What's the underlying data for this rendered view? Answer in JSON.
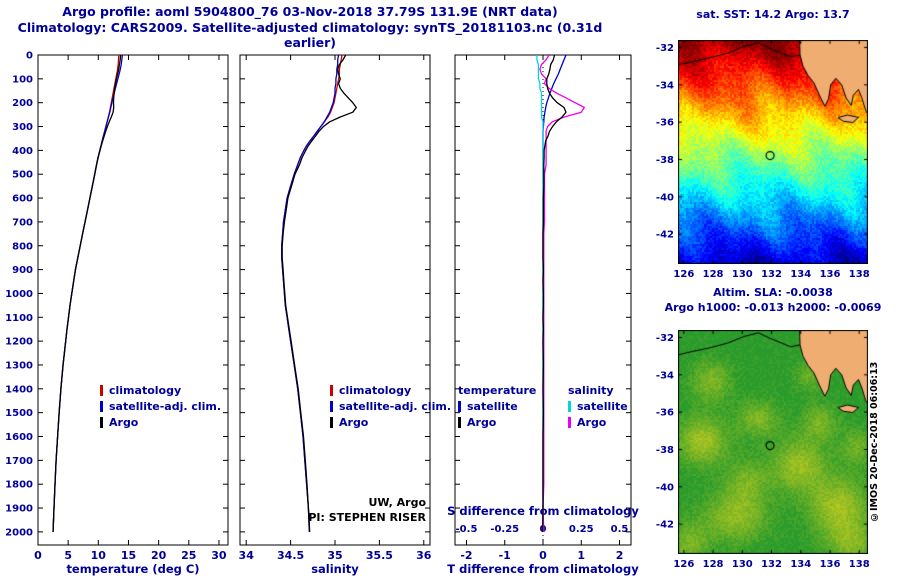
{
  "title": {
    "line1": "Argo profile: aoml 5904800_76 03-Nov-2018 37.79S 131.9E (NRT data)",
    "line2": "Climatology: CARS2009. Satellite-adjusted climatology: synTS_20181103.nc (0.31d earlier)"
  },
  "colors": {
    "text": "#000099",
    "frame": "#000000",
    "climatology": "#cc0000",
    "satellite": "#0000cc",
    "argo": "#000000",
    "sal_satellite": "#00d5e0",
    "sal_argo": "#ee00ee",
    "land": "#efad72",
    "background": "#ffffff"
  },
  "legend_profile": {
    "items": [
      {
        "label": "climatology",
        "color": "#cc0000"
      },
      {
        "label": "satellite-adj. clim.",
        "color": "#0000cc"
      },
      {
        "label": "Argo",
        "color": "#000000"
      }
    ]
  },
  "legend_diff": {
    "t_header": "temperature",
    "s_header": "salinity",
    "t_items": [
      {
        "label": "satellite",
        "color": "#0000cc"
      },
      {
        "label": "Argo",
        "color": "#000000"
      }
    ],
    "s_items": [
      {
        "label": "satellite",
        "color": "#00d5e0"
      },
      {
        "label": "Argo",
        "color": "#ee00ee"
      }
    ]
  },
  "annotations": {
    "uw": "UW, Argo",
    "pi": "PI: STEPHEN RISER",
    "copyright": "©IMOS 20-Dec-2018 06:06:13"
  },
  "chart_data": [
    {
      "id": "temperature-profile",
      "type": "line",
      "xlabel": "temperature (deg C)",
      "xlim": [
        0,
        31.5
      ],
      "xticks": [
        0,
        5,
        10,
        15,
        20,
        25,
        30
      ],
      "ylim": [
        0,
        2055
      ],
      "yticks": [
        0,
        100,
        200,
        300,
        400,
        500,
        600,
        700,
        800,
        900,
        1000,
        1100,
        1200,
        1300,
        1400,
        1500,
        1600,
        1700,
        1800,
        1900,
        2000
      ],
      "show_yticklabels": true,
      "depths": [
        0,
        20,
        40,
        60,
        80,
        100,
        120,
        140,
        160,
        180,
        200,
        220,
        240,
        260,
        280,
        300,
        320,
        340,
        360,
        380,
        400,
        430,
        460,
        500,
        550,
        600,
        650,
        700,
        750,
        800,
        850,
        900,
        950,
        1000,
        1050,
        1100,
        1150,
        1200,
        1300,
        1400,
        1500,
        1600,
        1700,
        1800,
        1900,
        2000
      ],
      "series": [
        {
          "name": "climatology",
          "color": "#cc0000",
          "values": [
            13.4,
            13.35,
            13.3,
            13.2,
            13.05,
            12.9,
            12.75,
            12.6,
            12.45,
            12.3,
            12.15,
            12.0,
            11.85,
            11.65,
            11.45,
            11.25,
            11.05,
            10.85,
            10.65,
            10.45,
            10.25,
            9.95,
            9.7,
            9.4,
            9.0,
            8.6,
            8.2,
            7.8,
            7.4,
            7.0,
            6.6,
            6.2,
            5.9,
            5.6,
            5.3,
            5.05,
            4.8,
            4.6,
            4.15,
            3.8,
            3.5,
            3.25,
            3.0,
            2.82,
            2.65,
            2.5
          ]
        },
        {
          "name": "satellite-adj. clim.",
          "color": "#0000cc",
          "values": [
            14.0,
            13.9,
            13.8,
            13.65,
            13.45,
            13.24,
            13.03,
            12.83,
            12.63,
            12.44,
            12.25,
            12.07,
            11.9,
            11.68,
            11.47,
            11.26,
            11.05,
            10.85,
            10.65,
            10.45,
            10.25,
            9.95,
            9.7,
            9.4,
            9.0,
            8.6,
            8.2,
            7.8,
            7.4,
            7.0,
            6.6,
            6.2,
            5.9,
            5.6,
            5.3,
            5.05,
            4.8,
            4.6,
            4.15,
            3.8,
            3.5,
            3.25,
            3.0,
            2.82,
            2.65,
            2.5
          ]
        },
        {
          "name": "Argo",
          "color": "#000000",
          "values": [
            13.7,
            13.62,
            13.5,
            13.38,
            13.2,
            13.0,
            12.85,
            12.72,
            12.62,
            12.55,
            12.52,
            12.55,
            12.45,
            12.15,
            11.8,
            11.5,
            11.22,
            10.98,
            10.72,
            10.5,
            10.28,
            9.98,
            9.72,
            9.42,
            9.02,
            8.61,
            8.21,
            7.81,
            7.4,
            7.0,
            6.6,
            6.21,
            5.9,
            5.61,
            5.31,
            5.05,
            4.81,
            4.6,
            4.16,
            3.8,
            3.51,
            3.25,
            3.0,
            2.82,
            2.65,
            2.49
          ]
        }
      ]
    },
    {
      "id": "salinity-profile",
      "type": "line",
      "xlabel": "salinity",
      "xlim": [
        33.93,
        36.07
      ],
      "xticks": [
        34,
        34.5,
        35,
        35.5,
        36
      ],
      "xtick_labels": [
        "34",
        "34.5",
        "35",
        "35.5",
        "36"
      ],
      "ylim": [
        0,
        2055
      ],
      "yticks": [
        0,
        100,
        200,
        300,
        400,
        500,
        600,
        700,
        800,
        900,
        1000,
        1100,
        1200,
        1300,
        1400,
        1500,
        1600,
        1700,
        1800,
        1900,
        2000
      ],
      "show_yticklabels": false,
      "depths": [
        0,
        20,
        40,
        60,
        80,
        100,
        120,
        140,
        160,
        180,
        200,
        220,
        240,
        260,
        280,
        300,
        320,
        340,
        360,
        380,
        400,
        430,
        460,
        500,
        550,
        600,
        650,
        700,
        750,
        800,
        850,
        900,
        950,
        1000,
        1050,
        1100,
        1150,
        1200,
        1300,
        1400,
        1500,
        1600,
        1700,
        1800,
        1900,
        2000
      ],
      "series": [
        {
          "name": "climatology",
          "color": "#cc0000",
          "values": [
            35.08,
            35.07,
            35.06,
            35.05,
            35.05,
            35.04,
            35.03,
            35.02,
            35.01,
            35.0,
            34.99,
            34.97,
            34.95,
            34.92,
            34.88,
            34.84,
            34.8,
            34.76,
            34.72,
            34.68,
            34.65,
            34.61,
            34.58,
            34.54,
            34.5,
            34.46,
            34.44,
            34.42,
            34.41,
            34.4,
            34.4,
            34.41,
            34.42,
            34.43,
            34.44,
            34.46,
            34.48,
            34.5,
            34.54,
            34.58,
            34.61,
            34.64,
            34.66,
            34.68,
            34.7,
            34.71
          ]
        },
        {
          "name": "satellite-adj. clim.",
          "color": "#0000cc",
          "values": [
            35.04,
            35.03,
            35.03,
            35.02,
            35.02,
            35.01,
            35.01,
            35.0,
            35.0,
            34.99,
            34.98,
            34.96,
            34.94,
            34.91,
            34.88,
            34.84,
            34.8,
            34.76,
            34.72,
            34.68,
            34.65,
            34.61,
            34.58,
            34.54,
            34.5,
            34.46,
            34.44,
            34.42,
            34.41,
            34.4,
            34.4,
            34.41,
            34.42,
            34.43,
            34.44,
            34.46,
            34.48,
            34.5,
            34.54,
            34.58,
            34.61,
            34.64,
            34.66,
            34.68,
            34.7,
            34.71
          ]
        },
        {
          "name": "Argo",
          "color": "#000000",
          "values": [
            35.12,
            35.09,
            35.05,
            35.03,
            35.04,
            35.06,
            35.04,
            35.06,
            35.1,
            35.15,
            35.2,
            35.24,
            35.2,
            35.06,
            34.94,
            34.87,
            34.82,
            34.78,
            34.74,
            34.7,
            34.67,
            34.63,
            34.6,
            34.55,
            34.51,
            34.47,
            34.45,
            34.43,
            34.415,
            34.405,
            34.405,
            34.415,
            34.425,
            34.435,
            34.445,
            34.465,
            34.485,
            34.505,
            34.545,
            34.585,
            34.615,
            34.645,
            34.665,
            34.685,
            34.7,
            34.715
          ]
        }
      ]
    },
    {
      "id": "difference-profile",
      "type": "line",
      "xlabel_bottom": "T difference from climatology",
      "xlabel_inner": "S difference from climatology",
      "xlim": [
        -2.3,
        2.3
      ],
      "xticks": [
        -2,
        -1,
        0,
        1,
        2
      ],
      "xtick_labels": [
        "-2",
        "-1",
        "0",
        "1",
        "2"
      ],
      "s_ticks": [
        -0.5,
        -0.25,
        0,
        0.25,
        0.5
      ],
      "s_tick_labels": [
        "-0.5",
        "-0.25",
        "0",
        "0.25",
        "0.5"
      ],
      "s_scale_factor": 4,
      "ylim": [
        0,
        2055
      ],
      "yticks": [
        0,
        100,
        200,
        300,
        400,
        500,
        600,
        700,
        800,
        900,
        1000,
        1100,
        1200,
        1300,
        1400,
        1500,
        1600,
        1700,
        1800,
        1900,
        2000
      ],
      "series_source": "computed: satellite and Argo minus climatology, from charts 0 and 1"
    },
    {
      "id": "sst-map",
      "type": "heatmap",
      "title": "sat. SST: 14.2 Argo: 13.7",
      "colormap": "jet",
      "xlim": [
        125.6,
        138.6
      ],
      "ylim": [
        -43.6,
        -31.6
      ],
      "xticks": [
        126,
        128,
        130,
        132,
        134,
        136,
        138
      ],
      "yticks": [
        -32,
        -34,
        -36,
        -38,
        -40,
        -42
      ],
      "marker": {
        "lon": 131.9,
        "lat": -37.79
      }
    },
    {
      "id": "sla-map",
      "type": "heatmap",
      "title_line1": "Altim. SLA: -0.0038",
      "title_line2": "Argo h1000: -0.013 h2000: -0.0069",
      "colormap": "green-yellow",
      "xlim": [
        125.6,
        138.6
      ],
      "ylim": [
        -43.6,
        -31.6
      ],
      "xticks": [
        126,
        128,
        130,
        132,
        134,
        136,
        138
      ],
      "yticks": [
        -32,
        -34,
        -36,
        -38,
        -40,
        -42
      ],
      "marker": {
        "lon": 131.9,
        "lat": -37.79
      }
    }
  ],
  "map_geo": {
    "coast": [
      [
        125.5,
        -32.95
      ],
      [
        126.6,
        -32.75
      ],
      [
        127.8,
        -32.55
      ],
      [
        129.0,
        -32.3
      ],
      [
        130.1,
        -31.95
      ],
      [
        131.1,
        -31.75
      ],
      [
        131.9,
        -32.05
      ],
      [
        132.7,
        -32.3
      ],
      [
        133.3,
        -32.5
      ],
      [
        133.95,
        -32.4
      ]
    ],
    "land": [
      [
        133.9,
        -31.0
      ],
      [
        133.95,
        -32.4
      ],
      [
        134.15,
        -33.0
      ],
      [
        134.5,
        -33.5
      ],
      [
        134.9,
        -33.9
      ],
      [
        135.3,
        -34.6
      ],
      [
        135.65,
        -35.15
      ],
      [
        135.9,
        -34.75
      ],
      [
        136.05,
        -34.0
      ],
      [
        136.4,
        -33.65
      ],
      [
        136.8,
        -34.0
      ],
      [
        137.1,
        -34.7
      ],
      [
        137.45,
        -35.1
      ],
      [
        137.6,
        -34.55
      ],
      [
        137.95,
        -34.25
      ],
      [
        138.2,
        -34.75
      ],
      [
        138.45,
        -35.4
      ],
      [
        138.75,
        -35.75
      ],
      [
        138.9,
        -31.0
      ]
    ],
    "island": [
      [
        136.55,
        -35.75
      ],
      [
        137.2,
        -35.62
      ],
      [
        137.95,
        -35.75
      ],
      [
        137.55,
        -36.02
      ],
      [
        136.9,
        -35.95
      ]
    ],
    "sla_blobs": [
      [
        127.2,
        -37.5,
        0.7,
        1.2,
        0.9
      ],
      [
        129.5,
        -41.5,
        0.6,
        1.5,
        1.0
      ],
      [
        131.0,
        -36.3,
        0.5,
        1.0,
        0.7
      ],
      [
        133.8,
        -38.8,
        0.65,
        1.3,
        1.0
      ],
      [
        136.5,
        -41.0,
        0.7,
        1.4,
        1.1
      ],
      [
        127.8,
        -34.3,
        0.5,
        1.0,
        0.8
      ],
      [
        135.2,
        -36.5,
        0.45,
        0.9,
        0.7
      ],
      [
        137.5,
        -43.0,
        0.5,
        1.2,
        0.8
      ],
      [
        130.3,
        -39.6,
        0.4,
        1.0,
        0.8
      ],
      [
        126.3,
        -43.0,
        0.45,
        1.0,
        0.9
      ],
      [
        134.6,
        -34.0,
        0.35,
        0.8,
        0.6
      ],
      [
        137.8,
        -37.8,
        0.4,
        0.8,
        0.7
      ]
    ]
  }
}
